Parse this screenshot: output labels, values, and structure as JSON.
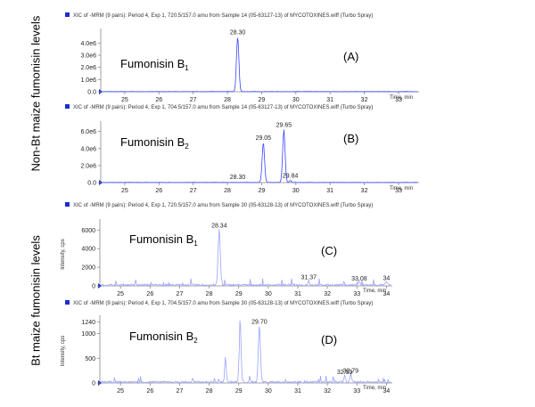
{
  "side_labels": {
    "top": "Non-Bt maize fumonisin levels",
    "bottom": "Bt maize fumonisin levels"
  },
  "colors": {
    "trace": "#3a44ff",
    "trace_light": "#9aa3ff",
    "header_marker": "#1a2fcc",
    "axis": "#888888",
    "text": "#000000"
  },
  "chart_data": [
    {
      "type": "line",
      "panel_label": "(A)",
      "header": "XIC of -MRM (9 pairs): Period 4, Exp 1, 720.5/157.0 amu from Sample 14 (05-63127-13) of MYCOTOXINES.wiff (Turbo Spray)",
      "compound": "Fumonisin B",
      "compound_sub": "1",
      "xlabel": "Time, min",
      "ylabel": "",
      "xlim": [
        24.3,
        33.6
      ],
      "ylim": [
        0,
        4900000.0
      ],
      "x_ticks": [
        "25",
        "26",
        "27",
        "28",
        "29",
        "30",
        "31",
        "32",
        "33"
      ],
      "y_ticks": [
        {
          "value": 0,
          "label": "0.0"
        },
        {
          "value": 1000000,
          "label": "1.0e6"
        },
        {
          "value": 2000000,
          "label": "2.0e6"
        },
        {
          "value": 3000000,
          "label": "3.0e6"
        },
        {
          "value": 4000000,
          "label": "4.0e6"
        }
      ],
      "peaks": [
        {
          "x": 28.3,
          "height": 4500000,
          "width": 0.07,
          "label": "28.30"
        }
      ]
    },
    {
      "type": "line",
      "panel_label": "(B)",
      "header": "XIC of -MRM (9 pairs): Period 4, Exp 1, 704.5/157.0 amu from Sample 14 (05-63127-13) of MYCOTOXINES.wiff (Turbo Spray)",
      "compound": "Fumonisin B",
      "compound_sub": "2",
      "xlabel": "Time, min",
      "ylabel": "",
      "xlim": [
        24.3,
        33.6
      ],
      "ylim": [
        0,
        6800000.0
      ],
      "x_ticks": [
        "25",
        "26",
        "27",
        "28",
        "29",
        "30",
        "31",
        "32",
        "33"
      ],
      "y_ticks": [
        {
          "value": 0,
          "label": "0.0"
        },
        {
          "value": 2000000,
          "label": "2.0e6"
        },
        {
          "value": 4000000,
          "label": "4.0e6"
        },
        {
          "value": 6000000,
          "label": "6.0e6"
        }
      ],
      "peaks": [
        {
          "x": 28.3,
          "height": 0,
          "width": 0.05,
          "label": "28.30"
        },
        {
          "x": 29.05,
          "height": 4700000,
          "width": 0.07,
          "label": "29.05"
        },
        {
          "x": 29.65,
          "height": 6200000,
          "width": 0.07,
          "label": "29.65"
        },
        {
          "x": 29.84,
          "height": 250000,
          "width": 0.05,
          "label": "29.84"
        }
      ]
    },
    {
      "type": "line",
      "panel_label": "(C)",
      "header": "XIC of -MRM (9 pairs): Period 4, Exp 1, 720.5/157.0 amu from Sample 30 (05-63128-13) of MYCOTOXINES.wiff (Turbo Spray)",
      "compound": "Fumonisin B",
      "compound_sub": "1",
      "xlabel": "Time, min",
      "ylabel": "Intensity, cps",
      "xlim": [
        24.3,
        34.2
      ],
      "ylim": [
        0,
        6800
      ],
      "x_ticks": [
        "25",
        "26",
        "27",
        "28",
        "29",
        "30",
        "31",
        "32",
        "33",
        "34"
      ],
      "y_ticks": [
        {
          "value": 0,
          "label": "0"
        },
        {
          "value": 2000,
          "label": "2000"
        },
        {
          "value": 4000,
          "label": "4000"
        },
        {
          "value": 6000,
          "label": "6000"
        }
      ],
      "peaks": [
        {
          "x": 28.34,
          "height": 6000,
          "width": 0.07,
          "label": "28.34"
        },
        {
          "x": 31.37,
          "height": 450,
          "width": 0.05,
          "label": "31.37"
        },
        {
          "x": 33.08,
          "height": 280,
          "width": 0.05,
          "label": "33.08"
        },
        {
          "x": 34.0,
          "height": 350,
          "width": 0.05,
          "label": "34"
        }
      ]
    },
    {
      "type": "line",
      "panel_label": "(D)",
      "header": "XIC of -MRM (9 pairs): Period 4, Exp 1, 704.5/157.0 amu from Sample 30 (05-63128-13) of MYCOTOXINES.wiff (Turbo Spray)",
      "compound": "Fumonisin B",
      "compound_sub": "2",
      "xlabel": "Time, min",
      "ylabel": "Intensity, cps",
      "xlim": [
        24.3,
        34.2
      ],
      "ylim": [
        0,
        1300
      ],
      "x_ticks": [
        "25",
        "26",
        "27",
        "28",
        "29",
        "30",
        "31",
        "32",
        "33",
        "34"
      ],
      "y_ticks": [
        {
          "value": 0,
          "label": "0"
        },
        {
          "value": 500,
          "label": "500"
        },
        {
          "value": 1000,
          "label": "1000"
        },
        {
          "value": 1240,
          "label": "1240"
        }
      ],
      "peaks": [
        {
          "x": 28.55,
          "height": 500,
          "width": 0.05,
          "label": ""
        },
        {
          "x": 29.05,
          "height": 1200,
          "width": 0.06,
          "label": ""
        },
        {
          "x": 29.7,
          "height": 1150,
          "width": 0.07,
          "label": "29.70"
        },
        {
          "x": 32.59,
          "height": 130,
          "width": 0.05,
          "label": "32.59"
        },
        {
          "x": 32.79,
          "height": 150,
          "width": 0.05,
          "label": "32.79"
        }
      ]
    }
  ]
}
